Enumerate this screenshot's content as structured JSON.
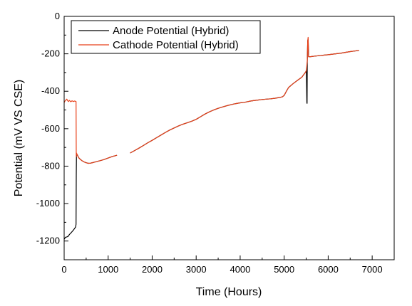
{
  "chart_data": {
    "type": "line",
    "title": "",
    "xlabel": "Time (Hours)",
    "ylabel": "Potential (mV VS CSE)",
    "xlim": [
      0,
      7500
    ],
    "ylim": [
      -1300,
      0
    ],
    "xticks": [
      0,
      1000,
      2000,
      3000,
      4000,
      5000,
      6000,
      7000
    ],
    "yticks": [
      0,
      -200,
      -400,
      -600,
      -800,
      -1000,
      -1200
    ],
    "grid": false,
    "legend_position": "top-left",
    "series": [
      {
        "name": "Anode Potential (Hybrid)",
        "color": "#000000",
        "segments": [
          [
            [
              0,
              -1190
            ],
            [
              30,
              -1180
            ],
            [
              60,
              -1178
            ],
            [
              90,
              -1175
            ],
            [
              120,
              -1165
            ],
            [
              150,
              -1158
            ],
            [
              180,
              -1150
            ],
            [
              210,
              -1142
            ],
            [
              240,
              -1132
            ],
            [
              260,
              -1125
            ],
            [
              270,
              -1110
            ],
            [
              275,
              -850
            ],
            [
              280,
              -735
            ],
            [
              300,
              -740
            ],
            [
              330,
              -755
            ],
            [
              360,
              -762
            ],
            [
              400,
              -770
            ],
            [
              450,
              -777
            ],
            [
              500,
              -782
            ],
            [
              550,
              -785
            ],
            [
              600,
              -784
            ],
            [
              650,
              -781
            ],
            [
              700,
              -778
            ],
            [
              800,
              -772
            ],
            [
              900,
              -765
            ],
            [
              1000,
              -757
            ],
            [
              1100,
              -748
            ],
            [
              1200,
              -742
            ]
          ],
          [
            [
              1500,
              -730
            ],
            [
              1600,
              -717
            ],
            [
              1700,
              -704
            ],
            [
              1800,
              -690
            ],
            [
              1900,
              -675
            ],
            [
              2000,
              -662
            ],
            [
              2100,
              -648
            ],
            [
              2200,
              -634
            ],
            [
              2300,
              -620
            ],
            [
              2400,
              -607
            ],
            [
              2500,
              -596
            ],
            [
              2600,
              -585
            ],
            [
              2700,
              -576
            ],
            [
              2800,
              -568
            ],
            [
              2900,
              -560
            ],
            [
              3000,
              -550
            ],
            [
              3100,
              -536
            ],
            [
              3200,
              -522
            ],
            [
              3300,
              -510
            ],
            [
              3400,
              -500
            ],
            [
              3500,
              -491
            ],
            [
              3600,
              -484
            ],
            [
              3700,
              -477
            ],
            [
              3800,
              -471
            ],
            [
              3900,
              -466
            ],
            [
              4000,
              -462
            ],
            [
              4100,
              -459
            ],
            [
              4200,
              -454
            ],
            [
              4300,
              -450
            ],
            [
              4400,
              -447
            ],
            [
              4500,
              -444
            ],
            [
              4600,
              -442
            ],
            [
              4700,
              -440
            ],
            [
              4800,
              -437
            ],
            [
              4900,
              -433
            ],
            [
              4960,
              -430
            ],
            [
              5000,
              -422
            ],
            [
              5050,
              -400
            ],
            [
              5100,
              -380
            ],
            [
              5200,
              -360
            ],
            [
              5300,
              -342
            ],
            [
              5400,
              -325
            ],
            [
              5480,
              -300
            ],
            [
              5505,
              -290
            ],
            [
              5515,
              -460
            ],
            [
              5520,
              -465
            ],
            [
              5525,
              -235
            ],
            [
              5535,
              -130
            ],
            [
              5545,
              -120
            ],
            [
              5555,
              -215
            ],
            [
              5600,
              -215
            ],
            [
              5700,
              -212
            ],
            [
              5800,
              -210
            ],
            [
              5900,
              -207
            ],
            [
              6000,
              -205
            ],
            [
              6100,
              -202
            ],
            [
              6200,
              -199
            ],
            [
              6300,
              -196
            ],
            [
              6400,
              -192
            ],
            [
              6500,
              -188
            ],
            [
              6600,
              -185
            ],
            [
              6700,
              -182
            ]
          ]
        ]
      },
      {
        "name": "Cathode Potential (Hybrid)",
        "color": "#e8421b",
        "segments": [
          [
            [
              0,
              -460
            ],
            [
              20,
              -452
            ],
            [
              40,
              -447
            ],
            [
              60,
              -442
            ],
            [
              80,
              -450
            ],
            [
              100,
              -455
            ],
            [
              120,
              -449
            ],
            [
              150,
              -456
            ],
            [
              180,
              -451
            ],
            [
              210,
              -455
            ],
            [
              240,
              -452
            ],
            [
              265,
              -455
            ],
            [
              270,
              -455
            ],
            [
              275,
              -750
            ],
            [
              280,
              -730
            ],
            [
              300,
              -740
            ],
            [
              330,
              -755
            ],
            [
              360,
              -762
            ],
            [
              400,
              -770
            ],
            [
              450,
              -777
            ],
            [
              500,
              -782
            ],
            [
              550,
              -785
            ],
            [
              600,
              -784
            ],
            [
              650,
              -781
            ],
            [
              700,
              -778
            ],
            [
              800,
              -772
            ],
            [
              900,
              -765
            ],
            [
              1000,
              -757
            ],
            [
              1100,
              -748
            ],
            [
              1200,
              -742
            ]
          ],
          [
            [
              1500,
              -730
            ],
            [
              1600,
              -717
            ],
            [
              1700,
              -704
            ],
            [
              1800,
              -690
            ],
            [
              1900,
              -675
            ],
            [
              2000,
              -662
            ],
            [
              2100,
              -648
            ],
            [
              2200,
              -634
            ],
            [
              2300,
              -620
            ],
            [
              2400,
              -607
            ],
            [
              2500,
              -596
            ],
            [
              2600,
              -585
            ],
            [
              2700,
              -576
            ],
            [
              2800,
              -568
            ],
            [
              2900,
              -560
            ],
            [
              3000,
              -550
            ],
            [
              3100,
              -536
            ],
            [
              3200,
              -522
            ],
            [
              3300,
              -510
            ],
            [
              3400,
              -500
            ],
            [
              3500,
              -491
            ],
            [
              3600,
              -484
            ],
            [
              3700,
              -477
            ],
            [
              3800,
              -471
            ],
            [
              3900,
              -466
            ],
            [
              4000,
              -462
            ],
            [
              4100,
              -459
            ],
            [
              4200,
              -454
            ],
            [
              4300,
              -450
            ],
            [
              4400,
              -447
            ],
            [
              4500,
              -444
            ],
            [
              4600,
              -442
            ],
            [
              4700,
              -440
            ],
            [
              4800,
              -437
            ],
            [
              4900,
              -433
            ],
            [
              4960,
              -430
            ],
            [
              5000,
              -422
            ],
            [
              5050,
              -400
            ],
            [
              5100,
              -380
            ],
            [
              5200,
              -360
            ],
            [
              5300,
              -342
            ],
            [
              5400,
              -325
            ],
            [
              5480,
              -300
            ],
            [
              5505,
              -290
            ],
            [
              5525,
              -235
            ],
            [
              5535,
              -130
            ],
            [
              5545,
              -112
            ],
            [
              5555,
              -215
            ],
            [
              5600,
              -215
            ],
            [
              5700,
              -212
            ],
            [
              5800,
              -210
            ],
            [
              5900,
              -207
            ],
            [
              6000,
              -205
            ],
            [
              6100,
              -202
            ],
            [
              6200,
              -199
            ],
            [
              6300,
              -196
            ],
            [
              6400,
              -192
            ],
            [
              6500,
              -188
            ],
            [
              6600,
              -185
            ],
            [
              6700,
              -182
            ]
          ]
        ]
      }
    ]
  }
}
